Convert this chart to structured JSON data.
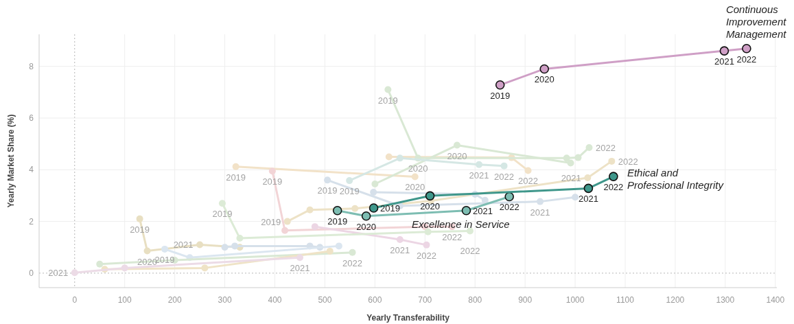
{
  "chart_data": {
    "type": "line",
    "xlabel": "Yearly Transferability",
    "ylabel": "Yearly Market Share (%)",
    "xlim": [
      -71,
      1403
    ],
    "ylim": [
      -0.56,
      9.24
    ],
    "xticks": [
      0,
      100,
      200,
      300,
      400,
      500,
      600,
      700,
      800,
      900,
      1000,
      1100,
      1200,
      1300,
      1400
    ],
    "yticks": [
      0,
      2,
      4,
      6,
      8
    ],
    "grid": true,
    "marker": "circle",
    "line_style": "solid",
    "series": [
      {
        "color": "#f2e2c8",
        "x": [
          322,
          680
        ],
        "values": [
          4.12,
          3.73
        ]
      },
      {
        "color": "#f2e2c8",
        "x": [
          628,
          873,
          906
        ],
        "values": [
          4.5,
          4.47,
          3.97
        ]
      },
      {
        "color": "#ede2c6",
        "x": [
          425,
          470,
          560,
          712,
          1025,
          1073
        ],
        "values": [
          2.0,
          2.45,
          2.5,
          2.8,
          3.69,
          4.33
        ]
      },
      {
        "color": "#d9e8d4",
        "x": [
          626,
          686,
          983,
          1006,
          1028
        ],
        "values": [
          7.1,
          4.45,
          4.45,
          4.47,
          4.86
        ]
      },
      {
        "color": "#d9e8d4",
        "x": [
          600,
          764,
          991
        ],
        "values": [
          3.45,
          4.95,
          4.26
        ]
      },
      {
        "color": "#d6e0ea",
        "x": [
          505,
          650,
          930,
          1000
        ],
        "values": [
          3.6,
          2.6,
          2.77,
          2.94
        ]
      },
      {
        "color": "#d6e0ea",
        "x": [
          597,
          800,
          820
        ],
        "values": [
          3.13,
          3.05,
          2.82
        ]
      },
      {
        "color": "#d5e7e4",
        "x": [
          549,
          650,
          808,
          858
        ],
        "values": [
          3.58,
          4.45,
          4.2,
          4.15
        ]
      },
      {
        "color": "#f2d4d6",
        "x": [
          395,
          420,
          700,
          754
        ],
        "values": [
          3.95,
          1.65,
          1.8,
          1.8
        ]
      },
      {
        "color": "#ecd6e4",
        "x": [
          480,
          650,
          703
        ],
        "values": [
          1.8,
          1.3,
          1.09
        ]
      },
      {
        "color": "#e8dfc2",
        "x": [
          130,
          145,
          250,
          330
        ],
        "values": [
          2.1,
          0.86,
          1.1,
          1.0
        ]
      },
      {
        "color": "#dcebd6",
        "x": [
          295,
          330,
          706,
          790
        ],
        "values": [
          2.7,
          1.35,
          1.6,
          1.63
        ]
      },
      {
        "color": "#d6e0ea",
        "x": [
          300,
          320,
          470,
          490
        ],
        "values": [
          1.0,
          1.05,
          1.05,
          1.0
        ]
      },
      {
        "color": "#dbe6f0",
        "x": [
          180,
          230,
          528
        ],
        "values": [
          0.93,
          0.6,
          1.05
        ]
      },
      {
        "color": "#d9e8d4",
        "x": [
          50,
          200,
          555
        ],
        "values": [
          0.35,
          0.5,
          0.8
        ]
      },
      {
        "color": "#efe3c6",
        "x": [
          60,
          260,
          510
        ],
        "values": [
          0.15,
          0.2,
          0.85
        ]
      },
      {
        "color": "#ecdbe6",
        "x": [
          0,
          100,
          450
        ],
        "values": [
          0.02,
          0.2,
          0.6
        ]
      },
      {
        "name": "Continuous Improvement Management",
        "color": "#cf9fc6",
        "x": [
          850,
          938.5,
          1298,
          1342.5
        ],
        "values": [
          7.28,
          7.9,
          8.6,
          8.69
        ]
      },
      {
        "name": "Excellence in Service",
        "color": "#7dbdb2",
        "x": [
          525,
          582.5,
          782.5,
          868.5
        ],
        "values": [
          2.42,
          2.21,
          2.42,
          2.96
        ]
      },
      {
        "name": "Ethical and Professional Integrity",
        "color": "#3f978b",
        "x": [
          597.5,
          710,
          1026.5,
          1076.5
        ],
        "values": [
          2.52,
          2.99,
          3.28,
          3.74
        ]
      }
    ],
    "annotations": [
      {
        "text": "2019",
        "x": 850,
        "y": 7.28
      },
      {
        "text": "2020",
        "x": 938.5,
        "y": 7.9
      },
      {
        "text": "2021",
        "x": 1298,
        "y": 8.6
      },
      {
        "text": "2022",
        "x": 1342.5,
        "y": 8.69
      },
      {
        "text": "2019",
        "x": 525,
        "y": 2.42
      },
      {
        "text": "2020",
        "x": 582.5,
        "y": 2.21
      },
      {
        "text": "2021",
        "x": 782.5,
        "y": 2.42
      },
      {
        "text": "2022",
        "x": 868.5,
        "y": 2.96
      },
      {
        "text": "2019",
        "x": 597.5,
        "y": 2.52
      },
      {
        "text": "2020",
        "x": 710,
        "y": 2.99
      },
      {
        "text": "2021",
        "x": 1026.5,
        "y": 3.28
      },
      {
        "text": "2022",
        "x": 1076.5,
        "y": 3.74
      },
      {
        "text": "2019",
        "x": 322,
        "y": 4.12
      },
      {
        "text": "2020",
        "x": 680,
        "y": 3.73
      },
      {
        "text": "2022",
        "x": 906,
        "y": 3.97
      },
      {
        "text": "2021",
        "x": 1025,
        "y": 3.69
      },
      {
        "text": "2022",
        "x": 1073,
        "y": 4.33
      },
      {
        "text": "2019",
        "x": 425,
        "y": 2.0
      },
      {
        "text": "2019",
        "x": 626,
        "y": 7.1
      },
      {
        "text": "2020",
        "x": 686,
        "y": 4.45
      },
      {
        "text": "2022",
        "x": 1028,
        "y": 4.86
      },
      {
        "text": "2020",
        "x": 764,
        "y": 4.95
      },
      {
        "text": "2019",
        "x": 505,
        "y": 3.6
      },
      {
        "text": "2021",
        "x": 930,
        "y": 2.77
      },
      {
        "text": "2019",
        "x": 549,
        "y": 3.58
      },
      {
        "text": "2021",
        "x": 808,
        "y": 4.2
      },
      {
        "text": "2022",
        "x": 858,
        "y": 4.15
      },
      {
        "text": "2019",
        "x": 395,
        "y": 3.95
      },
      {
        "text": "2022",
        "x": 754,
        "y": 1.8
      },
      {
        "text": "2021",
        "x": 650,
        "y": 1.3
      },
      {
        "text": "2022",
        "x": 703,
        "y": 1.09
      },
      {
        "text": "2019",
        "x": 130,
        "y": 2.1
      },
      {
        "text": "2020",
        "x": 145,
        "y": 0.86
      },
      {
        "text": "2021",
        "x": 250,
        "y": 1.1
      },
      {
        "text": "2019",
        "x": 295,
        "y": 2.7
      },
      {
        "text": "2022",
        "x": 790,
        "y": 1.63
      },
      {
        "text": "2019",
        "x": 180,
        "y": 0.93
      },
      {
        "text": "2021",
        "x": 0,
        "y": 0.02
      },
      {
        "text": "2022",
        "x": 555,
        "y": 0.8
      },
      {
        "text": "2021",
        "x": 450,
        "y": 0.6
      }
    ]
  }
}
